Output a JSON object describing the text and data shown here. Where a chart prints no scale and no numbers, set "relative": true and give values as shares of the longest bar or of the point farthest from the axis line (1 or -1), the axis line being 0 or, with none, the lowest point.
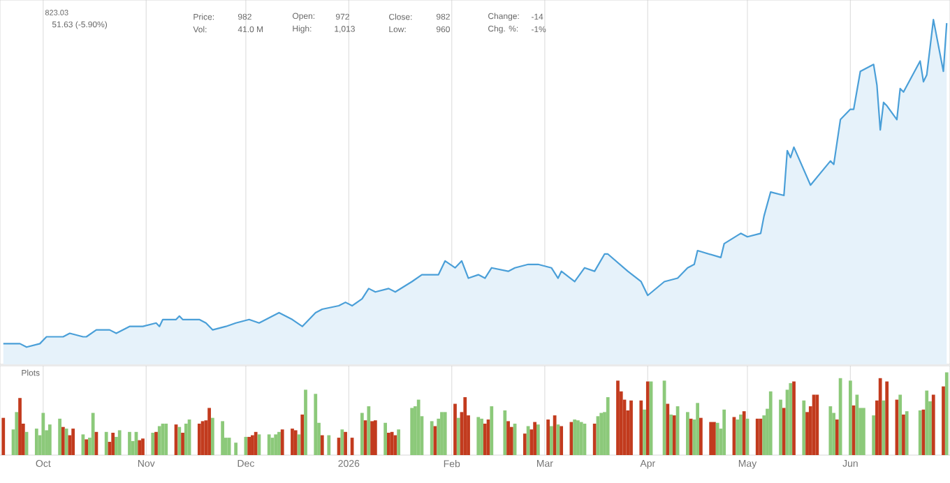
{
  "chart_data": [
    {
      "type": "area",
      "relative": true,
      "grid": "x",
      "tick_labels": false,
      "color": "#4a9fd8",
      "xlim": [
        "2025-09-18",
        "2026-07-01"
      ],
      "xticks": [
        {
          "value": "2025-10-01",
          "label": null
        },
        {
          "value": "2025-11-01",
          "label": null
        },
        {
          "value": "2025-12-01",
          "label": null
        },
        {
          "value": "2026-01-01",
          "label": null
        },
        {
          "value": "2026-02-01",
          "label": null
        },
        {
          "value": "2026-03-01",
          "label": null
        },
        {
          "value": "2026-04-01",
          "label": null
        },
        {
          "value": "2026-05-01",
          "label": null
        },
        {
          "value": "2026-06-01",
          "label": null
        }
      ],
      "x": [
        "2025-09-19",
        "2025-09-24",
        "2025-09-26",
        "2025-09-30",
        "2025-10-02",
        "2025-10-07",
        "2025-10-09",
        "2025-10-13",
        "2025-10-14",
        "2025-10-17",
        "2025-10-21",
        "2025-10-23",
        "2025-10-27",
        "2025-10-31",
        "2025-11-04",
        "2025-11-05",
        "2025-11-06",
        "2025-11-10",
        "2025-11-11",
        "2025-11-12",
        "2025-11-13",
        "2025-11-17",
        "2025-11-19",
        "2025-11-21",
        "2025-11-25",
        "2025-11-28",
        "2025-12-02",
        "2025-12-05",
        "2025-12-11",
        "2025-12-15",
        "2025-12-18",
        "2025-12-22",
        "2025-12-24",
        "2025-12-29",
        "2025-12-31",
        "2026-01-02",
        "2026-01-05",
        "2026-01-07",
        "2026-01-09",
        "2026-01-13",
        "2026-01-15",
        "2026-01-20",
        "2026-01-23",
        "2026-01-28",
        "2026-01-30",
        "2026-02-02",
        "2026-02-04",
        "2026-02-06",
        "2026-02-09",
        "2026-02-11",
        "2026-02-13",
        "2026-02-18",
        "2026-02-20",
        "2026-02-24",
        "2026-02-27",
        "2026-03-03",
        "2026-03-05",
        "2026-03-06",
        "2026-03-10",
        "2026-03-13",
        "2026-03-16",
        "2026-03-19",
        "2026-03-20",
        "2026-03-26",
        "2026-03-30",
        "2026-04-01",
        "2026-04-06",
        "2026-04-10",
        "2026-04-13",
        "2026-04-15",
        "2026-04-16",
        "2026-04-23",
        "2026-04-24",
        "2026-04-29",
        "2026-05-01",
        "2026-05-05",
        "2026-05-06",
        "2026-05-08",
        "2026-05-12",
        "2026-05-13",
        "2026-05-14",
        "2026-05-15",
        "2026-05-20",
        "2026-05-26",
        "2026-05-27",
        "2026-05-29",
        "2026-06-01",
        "2026-06-02",
        "2026-06-04",
        "2026-06-08",
        "2026-06-09",
        "2026-06-10",
        "2026-06-11",
        "2026-06-12",
        "2026-06-15",
        "2026-06-16",
        "2026-06-17",
        "2026-06-22",
        "2026-06-23",
        "2026-06-24",
        "2026-06-26",
        "2026-06-29",
        "2026-06-30"
      ],
      "values": [
        0.06,
        0.06,
        0.05,
        0.06,
        0.08,
        0.08,
        0.09,
        0.08,
        0.08,
        0.1,
        0.1,
        0.09,
        0.11,
        0.11,
        0.12,
        0.11,
        0.13,
        0.13,
        0.14,
        0.13,
        0.13,
        0.13,
        0.12,
        0.1,
        0.11,
        0.12,
        0.13,
        0.12,
        0.15,
        0.13,
        0.11,
        0.15,
        0.16,
        0.17,
        0.18,
        0.17,
        0.19,
        0.22,
        0.21,
        0.22,
        0.21,
        0.24,
        0.26,
        0.26,
        0.3,
        0.28,
        0.3,
        0.25,
        0.26,
        0.25,
        0.28,
        0.27,
        0.28,
        0.29,
        0.29,
        0.28,
        0.25,
        0.27,
        0.24,
        0.28,
        0.27,
        0.32,
        0.32,
        0.27,
        0.24,
        0.2,
        0.24,
        0.25,
        0.28,
        0.29,
        0.33,
        0.31,
        0.35,
        0.38,
        0.37,
        0.38,
        0.43,
        0.5,
        0.49,
        0.62,
        0.6,
        0.63,
        0.52,
        0.59,
        0.58,
        0.71,
        0.74,
        0.74,
        0.85,
        0.87,
        0.81,
        0.68,
        0.76,
        0.75,
        0.71,
        0.8,
        0.79,
        0.88,
        0.82,
        0.84,
        1.0,
        0.85,
        0.99
      ],
      "annotations": [
        "823.03",
        "51.63 (-5.90%)",
        "Price:",
        "982",
        "Vol:",
        "41.0 M",
        "Open:",
        "972",
        "High:",
        "1,013",
        "Close:",
        "982",
        "Low:",
        "960",
        "Change:",
        "-14",
        "Chg. %:",
        "-1%"
      ]
    },
    {
      "type": "bar",
      "relative": true,
      "grid": "x",
      "tick_labels": "x",
      "xlim": [
        "2025-09-18",
        "2026-07-01"
      ],
      "xticks": [
        {
          "value": "2025-10-01",
          "label": "Oct"
        },
        {
          "value": "2025-11-01",
          "label": "Nov"
        },
        {
          "value": "2025-12-01",
          "label": "Dec"
        },
        {
          "value": "2026-01-01",
          "label": "2026"
        },
        {
          "value": "2026-02-01",
          "label": "Feb"
        },
        {
          "value": "2026-03-01",
          "label": "Mar"
        },
        {
          "value": "2026-04-01",
          "label": "Apr"
        },
        {
          "value": "2026-05-01",
          "label": "May"
        },
        {
          "value": "2026-06-01",
          "label": "Jun"
        }
      ],
      "x": [
        "2025-09-19",
        "2025-09-22",
        "2025-09-23",
        "2025-09-24",
        "2025-09-25",
        "2025-09-26",
        "2025-09-29",
        "2025-09-30",
        "2025-10-01",
        "2025-10-02",
        "2025-10-03",
        "2025-10-06",
        "2025-10-07",
        "2025-10-08",
        "2025-10-09",
        "2025-10-10",
        "2025-10-13",
        "2025-10-14",
        "2025-10-15",
        "2025-10-16",
        "2025-10-17",
        "2025-10-20",
        "2025-10-21",
        "2025-10-22",
        "2025-10-23",
        "2025-10-24",
        "2025-10-27",
        "2025-10-28",
        "2025-10-29",
        "2025-10-30",
        "2025-10-31",
        "2025-11-03",
        "2025-11-04",
        "2025-11-05",
        "2025-11-06",
        "2025-11-07",
        "2025-11-10",
        "2025-11-11",
        "2025-11-12",
        "2025-11-13",
        "2025-11-14",
        "2025-11-17",
        "2025-11-18",
        "2025-11-19",
        "2025-11-20",
        "2025-11-21",
        "2025-11-24",
        "2025-11-25",
        "2025-11-26",
        "2025-11-28",
        "2025-12-01",
        "2025-12-02",
        "2025-12-03",
        "2025-12-04",
        "2025-12-05",
        "2025-12-08",
        "2025-12-09",
        "2025-12-10",
        "2025-12-11",
        "2025-12-12",
        "2025-12-15",
        "2025-12-16",
        "2025-12-17",
        "2025-12-18",
        "2025-12-19",
        "2025-12-22",
        "2025-12-23",
        "2025-12-24",
        "2025-12-26",
        "2025-12-29",
        "2025-12-30",
        "2025-12-31",
        "2026-01-02",
        "2026-01-05",
        "2026-01-06",
        "2026-01-07",
        "2026-01-08",
        "2026-01-09",
        "2026-01-12",
        "2026-01-13",
        "2026-01-14",
        "2026-01-15",
        "2026-01-16",
        "2026-01-20",
        "2026-01-21",
        "2026-01-22",
        "2026-01-23",
        "2026-01-26",
        "2026-01-27",
        "2026-01-28",
        "2026-01-29",
        "2026-01-30",
        "2026-02-02",
        "2026-02-03",
        "2026-02-04",
        "2026-02-05",
        "2026-02-06",
        "2026-02-09",
        "2026-02-10",
        "2026-02-11",
        "2026-02-12",
        "2026-02-13",
        "2026-02-17",
        "2026-02-18",
        "2026-02-19",
        "2026-02-20",
        "2026-02-23",
        "2026-02-24",
        "2026-02-25",
        "2026-02-26",
        "2026-02-27",
        "2026-03-02",
        "2026-03-03",
        "2026-03-04",
        "2026-03-05",
        "2026-03-06",
        "2026-03-09",
        "2026-03-10",
        "2026-03-11",
        "2026-03-12",
        "2026-03-13",
        "2026-03-16",
        "2026-03-17",
        "2026-03-18",
        "2026-03-19",
        "2026-03-20",
        "2026-03-23",
        "2026-03-24",
        "2026-03-25",
        "2026-03-26",
        "2026-03-27",
        "2026-03-30",
        "2026-03-31",
        "2026-04-01",
        "2026-04-02",
        "2026-04-06",
        "2026-04-07",
        "2026-04-08",
        "2026-04-09",
        "2026-04-10",
        "2026-04-13",
        "2026-04-14",
        "2026-04-15",
        "2026-04-16",
        "2026-04-17",
        "2026-04-20",
        "2026-04-21",
        "2026-04-22",
        "2026-04-23",
        "2026-04-24",
        "2026-04-27",
        "2026-04-28",
        "2026-04-29",
        "2026-04-30",
        "2026-05-01",
        "2026-05-04",
        "2026-05-05",
        "2026-05-06",
        "2026-05-07",
        "2026-05-08",
        "2026-05-11",
        "2026-05-12",
        "2026-05-13",
        "2026-05-14",
        "2026-05-15",
        "2026-05-18",
        "2026-05-19",
        "2026-05-20",
        "2026-05-21",
        "2026-05-22",
        "2026-05-26",
        "2026-05-27",
        "2026-05-28",
        "2026-05-29",
        "2026-06-01",
        "2026-06-02",
        "2026-06-03",
        "2026-06-04",
        "2026-06-05",
        "2026-06-08",
        "2026-06-09",
        "2026-06-10",
        "2026-06-11",
        "2026-06-12",
        "2026-06-15",
        "2026-06-16",
        "2026-06-17",
        "2026-06-18",
        "2026-06-22",
        "2026-06-23",
        "2026-06-24",
        "2026-06-25",
        "2026-06-26",
        "2026-06-29",
        "2026-06-30"
      ],
      "values": [
        0.45,
        0.31,
        0.52,
        0.69,
        0.38,
        0.28,
        0.32,
        0.24,
        0.51,
        0.3,
        0.37,
        0.44,
        0.34,
        0.32,
        0.24,
        0.32,
        0.25,
        0.19,
        0.21,
        0.51,
        0.28,
        0.28,
        0.16,
        0.27,
        0.22,
        0.3,
        0.28,
        0.17,
        0.28,
        0.18,
        0.2,
        0.27,
        0.28,
        0.35,
        0.38,
        0.38,
        0.37,
        0.34,
        0.27,
        0.38,
        0.43,
        0.38,
        0.41,
        0.42,
        0.57,
        0.45,
        0.41,
        0.21,
        0.21,
        0.15,
        0.22,
        0.22,
        0.24,
        0.28,
        0.25,
        0.25,
        0.21,
        0.25,
        0.28,
        0.31,
        0.32,
        0.3,
        0.25,
        0.49,
        0.79,
        0.74,
        0.39,
        0.24,
        0.24,
        0.21,
        0.31,
        0.28,
        0.21,
        0.51,
        0.42,
        0.59,
        0.41,
        0.42,
        0.39,
        0.27,
        0.28,
        0.24,
        0.31,
        0.57,
        0.59,
        0.67,
        0.47,
        0.41,
        0.35,
        0.44,
        0.52,
        0.52,
        0.62,
        0.45,
        0.52,
        0.7,
        0.48,
        0.46,
        0.44,
        0.38,
        0.43,
        0.59,
        0.54,
        0.41,
        0.34,
        0.38,
        0.26,
        0.35,
        0.31,
        0.4,
        0.37,
        0.43,
        0.35,
        0.48,
        0.37,
        0.35,
        0.4,
        0.43,
        0.42,
        0.4,
        0.38,
        0.38,
        0.47,
        0.51,
        0.52,
        0.7,
        0.9,
        0.77,
        0.67,
        0.54,
        0.66,
        0.66,
        0.55,
        0.89,
        0.89,
        0.9,
        0.62,
        0.49,
        0.48,
        0.59,
        0.52,
        0.44,
        0.43,
        0.63,
        0.45,
        0.4,
        0.4,
        0.39,
        0.32,
        0.55,
        0.46,
        0.43,
        0.49,
        0.53,
        0.44,
        0.44,
        0.44,
        0.48,
        0.56,
        0.77,
        0.67,
        0.57,
        0.79,
        0.87,
        0.89,
        0.66,
        0.52,
        0.59,
        0.73,
        0.73,
        0.59,
        0.51,
        0.43,
        0.93,
        0.9,
        0.6,
        0.73,
        0.57,
        0.57,
        0.48,
        0.66,
        0.93,
        0.66,
        0.89,
        0.67,
        0.73,
        0.49,
        0.53,
        0.54,
        0.55,
        0.78,
        0.65,
        0.73,
        0.83,
        1.0
      ],
      "colors": [
        "#c23b1e",
        "#8cc97a",
        "#8cc97a",
        "#c23b1e",
        "#c23b1e",
        "#8cc97a",
        "#8cc97a",
        "#8cc97a",
        "#8cc97a",
        "#8cc97a",
        "#8cc97a",
        "#8cc97a",
        "#c23b1e",
        "#8cc97a",
        "#c23b1e",
        "#c23b1e",
        "#8cc97a",
        "#c23b1e",
        "#8cc97a",
        "#8cc97a",
        "#c23b1e",
        "#8cc97a",
        "#c23b1e",
        "#c23b1e",
        "#8cc97a",
        "#8cc97a",
        "#8cc97a",
        "#8cc97a",
        "#8cc97a",
        "#c23b1e",
        "#c23b1e",
        "#8cc97a",
        "#c23b1e",
        "#8cc97a",
        "#8cc97a",
        "#8cc97a",
        "#c23b1e",
        "#8cc97a",
        "#c23b1e",
        "#8cc97a",
        "#8cc97a",
        "#c23b1e",
        "#c23b1e",
        "#c23b1e",
        "#c23b1e",
        "#8cc97a",
        "#8cc97a",
        "#8cc97a",
        "#8cc97a",
        "#8cc97a",
        "#8cc97a",
        "#c23b1e",
        "#c23b1e",
        "#c23b1e",
        "#8cc97a",
        "#8cc97a",
        "#8cc97a",
        "#8cc97a",
        "#8cc97a",
        "#c23b1e",
        "#c23b1e",
        "#c23b1e",
        "#8cc97a",
        "#c23b1e",
        "#8cc97a",
        "#8cc97a",
        "#8cc97a",
        "#c23b1e",
        "#8cc97a",
        "#c23b1e",
        "#8cc97a",
        "#c23b1e",
        "#c23b1e",
        "#8cc97a",
        "#c23b1e",
        "#8cc97a",
        "#c23b1e",
        "#c23b1e",
        "#8cc97a",
        "#c23b1e",
        "#c23b1e",
        "#c23b1e",
        "#8cc97a",
        "#8cc97a",
        "#8cc97a",
        "#8cc97a",
        "#8cc97a",
        "#8cc97a",
        "#c23b1e",
        "#8cc97a",
        "#8cc97a",
        "#8cc97a",
        "#c23b1e",
        "#8cc97a",
        "#c23b1e",
        "#c23b1e",
        "#c23b1e",
        "#8cc97a",
        "#8cc97a",
        "#c23b1e",
        "#c23b1e",
        "#8cc97a",
        "#8cc97a",
        "#c23b1e",
        "#c23b1e",
        "#8cc97a",
        "#c23b1e",
        "#8cc97a",
        "#c23b1e",
        "#c23b1e",
        "#8cc97a",
        "#c23b1e",
        "#8cc97a",
        "#c23b1e",
        "#8cc97a",
        "#c23b1e",
        "#c23b1e",
        "#8cc97a",
        "#8cc97a",
        "#8cc97a",
        "#8cc97a",
        "#c23b1e",
        "#8cc97a",
        "#8cc97a",
        "#8cc97a",
        "#8cc97a",
        "#c23b1e",
        "#c23b1e",
        "#c23b1e",
        "#c23b1e",
        "#c23b1e",
        "#c23b1e",
        "#8cc97a",
        "#c23b1e",
        "#8cc97a",
        "#8cc97a",
        "#c23b1e",
        "#8cc97a",
        "#c23b1e",
        "#8cc97a",
        "#8cc97a",
        "#c23b1e",
        "#8cc97a",
        "#8cc97a",
        "#c23b1e",
        "#c23b1e",
        "#c23b1e",
        "#8cc97a",
        "#8cc97a",
        "#8cc97a",
        "#c23b1e",
        "#8cc97a",
        "#8cc97a",
        "#c23b1e",
        "#8cc97a",
        "#c23b1e",
        "#c23b1e",
        "#8cc97a",
        "#8cc97a",
        "#8cc97a",
        "#8cc97a",
        "#c23b1e",
        "#8cc97a",
        "#8cc97a",
        "#c23b1e",
        "#8cc97a",
        "#c23b1e",
        "#c23b1e",
        "#c23b1e",
        "#c23b1e",
        "#8cc97a",
        "#8cc97a",
        "#c23b1e",
        "#8cc97a",
        "#8cc97a",
        "#c23b1e",
        "#8cc97a",
        "#8cc97a",
        "#8cc97a",
        "#8cc97a",
        "#c23b1e",
        "#c23b1e",
        "#8cc97a",
        "#c23b1e",
        "#c23b1e",
        "#8cc97a",
        "#c23b1e",
        "#8cc97a",
        "#8cc97a",
        "#c23b1e",
        "#8cc97a",
        "#8cc97a",
        "#c23b1e",
        "#c23b1e",
        "#8cc97a"
      ],
      "annotations": [
        "Plots"
      ]
    }
  ]
}
